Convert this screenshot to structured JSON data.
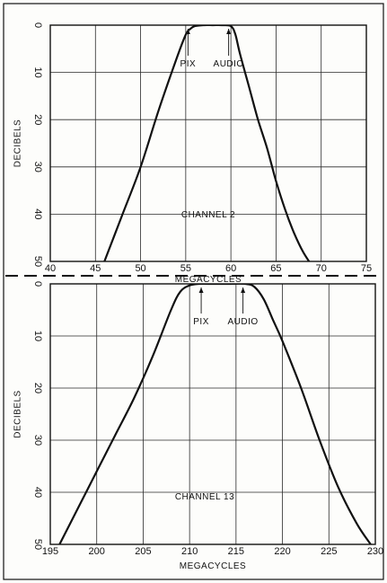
{
  "chart_data": [
    {
      "type": "line",
      "title": "",
      "xlabel": "MEGACYCLES",
      "ylabel": "DECIBELS",
      "xlim": [
        40,
        75
      ],
      "ylim": [
        0,
        50
      ],
      "y_inverted": true,
      "grid": true,
      "x_ticks": [
        "40",
        "45",
        "50",
        "55",
        "60",
        "65",
        "70",
        "75"
      ],
      "y_ticks": [
        "0",
        "10",
        "20",
        "30",
        "40",
        "50"
      ],
      "annotation": "CHANNEL 2",
      "markers": [
        {
          "label": "PIX",
          "x": 55.25
        },
        {
          "label": "AUDIO",
          "x": 59.75
        }
      ],
      "series": [
        {
          "x": [
            46,
            48,
            50,
            52,
            54,
            55,
            55.5,
            56,
            57,
            58,
            59,
            60,
            60.5,
            61,
            62,
            63,
            64,
            65,
            66,
            67,
            68,
            69
          ],
          "y": [
            50,
            40,
            30,
            18,
            7,
            2,
            0.8,
            0.2,
            0,
            0,
            0,
            0.2,
            2,
            6,
            13,
            20,
            26,
            33,
            39,
            44,
            48,
            51
          ]
        }
      ]
    },
    {
      "type": "line",
      "title": "",
      "xlabel": "MEGACYCLES",
      "ylabel": "DECIBELS",
      "xlim": [
        195,
        230
      ],
      "ylim": [
        0,
        50
      ],
      "y_inverted": true,
      "grid": true,
      "x_ticks": [
        "195",
        "200",
        "205",
        "210",
        "215",
        "220",
        "225",
        "230"
      ],
      "y_ticks": [
        "0",
        "10",
        "20",
        "30",
        "40",
        "50"
      ],
      "annotation": "CHANNEL 13",
      "markers": [
        {
          "label": "PIX",
          "x": 211.25
        },
        {
          "label": "AUDIO",
          "x": 215.75
        }
      ],
      "series": [
        {
          "x": [
            196,
            198,
            200,
            202,
            204,
            206,
            208,
            209,
            210,
            211,
            212,
            214,
            216,
            217,
            218,
            219,
            220,
            222,
            224,
            226,
            228,
            229.5
          ],
          "y": [
            50,
            43,
            36,
            29,
            22,
            14,
            5,
            1.5,
            0.3,
            0,
            0,
            0,
            0,
            0.6,
            3,
            7,
            11,
            20,
            30,
            39,
            46,
            50
          ]
        }
      ]
    }
  ]
}
